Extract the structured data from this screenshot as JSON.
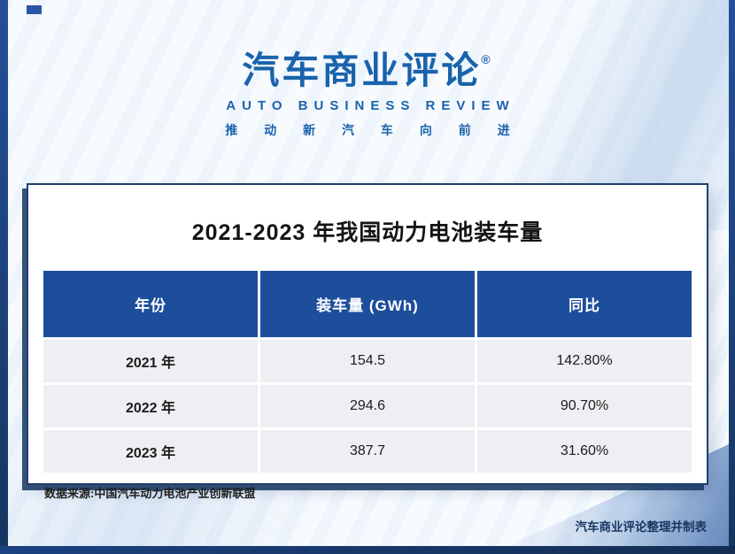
{
  "brand": {
    "logo_text": "汽车商业评论",
    "registered_mark": "®",
    "logo_subtitle": "AUTO BUSINESS REVIEW",
    "tagline": "推 动 新 汽 车 向 前 进"
  },
  "card": {
    "title": "2021-2023 年我国动力电池装车量",
    "source_note": "数据来源:中国汽车动力电池产业创新联盟"
  },
  "footer": {
    "credit": "汽车商业评论整理并制表"
  },
  "colors": {
    "brand_blue": "#1a63ac",
    "table_header_blue": "#1d4e9c",
    "frame_navy": "#16355f",
    "row_gray": "#edeff2"
  },
  "chart_data": {
    "type": "table",
    "title": "2021-2023 年我国动力电池装车量",
    "columns": [
      "年份",
      "装车量 (GWh)",
      "同比"
    ],
    "rows": [
      [
        "2021 年",
        "154.5",
        "142.80%"
      ],
      [
        "2022 年",
        "294.6",
        "90.70%"
      ],
      [
        "2023 年",
        "387.7",
        "31.60%"
      ]
    ],
    "source": "数据来源:中国汽车动力电池产业创新联盟",
    "legend_position": "none",
    "grid": false
  }
}
